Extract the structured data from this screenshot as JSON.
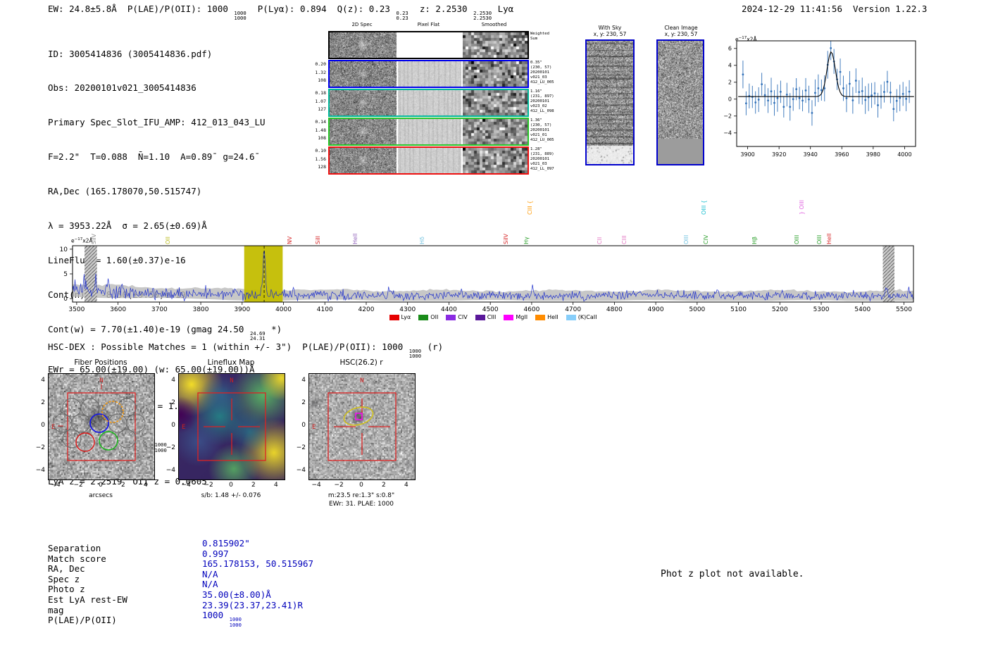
{
  "colors": {
    "value_blue": "#0000bb",
    "panel_border_blue": "#0000cc",
    "compass_red": "#cc2020",
    "crosshair_red": "#dd2222",
    "ellipse_yellow": "#d4c416",
    "marker_magenta": "#ff00ff",
    "spectrum_blue": "#2233cc"
  },
  "header": {
    "ew": "EW: 24.8±5.8Å  ",
    "plae_pre": "P(LAE)/P(OII): 1000 ",
    "plae_top": "1000",
    "plae_bottom": "1000",
    "plya": "  P(Lyα): 0.894  ",
    "qz_pre": "Q(z): 0.23 ",
    "qz_top": "0.23",
    "qz_bottom": "0.23",
    "z_pre": "  z: 2.2530 ",
    "z_top": "2.2530",
    "z_bottom": "2.2530",
    "z_post": " Lyα",
    "timestamp": "2024-12-29 11:41:56  Version 1.22.3"
  },
  "info": {
    "lines": [
      "ID: 3005414836 (3005414836.pdf)",
      "Obs: 20200101v021_3005414836",
      "Primary Spec_Slot_IFU_AMP: 412_013_043_LU",
      "F=2.2\"  T=0.088  N̄=1.10  A=0.89̄  g=24.6̄",
      "RA,Dec (165.178070,50.515747)",
      "λ = 3953.22Å  σ = 2.65(±0.69)Å",
      "LineFlux = 1.60(±0.37)e-16",
      "Cont(n) = -8.50(±9.50)e-19"
    ],
    "contw_pre": "Cont(w) = 7.70(±1.40)e-19 (gmag 24.50 ",
    "contw_top": "24.69",
    "contw_bottom": "24.31",
    "contw_post": " *)",
    "ewr_line": "EWr = 65.00(±19.00) (w: 65.00(±19.00))Å",
    "sn_pre": "S/N = 4.9(±0.4)   χ",
    "sn_sup": "2",
    "sn_post": " = 1.0(±0.2)",
    "plae_pre": "P(LAE)/P(OII): 1000 ",
    "plae_top": "1000",
    "plae_bottom": "1000",
    "z_line": "LyA z = 2.2519  OII z = 0.0605"
  },
  "twod": {
    "headers": [
      "2D Spec",
      "Pixel Flat",
      "Smoothed"
    ],
    "rows": [
      {
        "border": "#000000",
        "weighted": true,
        "left": [],
        "right": [
          "Weighted",
          "Sum"
        ]
      },
      {
        "border": "#0000ee",
        "left": [
          "0.20",
          "1.32",
          "108"
        ],
        "right": [
          "0.35\"",
          "(230, 57)",
          "20200101",
          "v021_03",
          "412_LU_005"
        ]
      },
      {
        "border": "#00b89b",
        "left": [
          "0.18",
          "1.07",
          "127"
        ],
        "right": [
          "1.16\"",
          "(231, 897)",
          "20200101",
          "v023_02",
          "412_LL_098"
        ]
      },
      {
        "border": "#27c427",
        "left": [
          "0.14",
          "1.48",
          "108"
        ],
        "right": [
          "1.36\"",
          "(230, 57)",
          "20200101",
          "v021_01",
          "412_LU_005"
        ]
      },
      {
        "border": "#ee1111",
        "left": [
          "0.10",
          "1.56",
          "128"
        ],
        "right": [
          "1.28\"",
          "(231, 889)",
          "20200101",
          "v021_03",
          "412_LL_097"
        ]
      }
    ]
  },
  "withsky": {
    "title": "With Sky",
    "subtitle": "x, y: 230, 57"
  },
  "clean": {
    "title": "Clean Image",
    "subtitle": "x, y: 230, 57"
  },
  "hscdex": {
    "pre": "HSC-DEX : Possible Matches = 1 (within +/- 3\")  P(LAE)/P(OII): 1000 ",
    "frac_top": "1000",
    "frac_bottom": "1000",
    "post": " (r)"
  },
  "cutouts": [
    {
      "title": "Fiber Positions",
      "xlabel": "arcsecs",
      "xticks": [
        -4,
        -2,
        0,
        2,
        4
      ],
      "yticks": [
        4,
        2,
        0,
        -2,
        -4
      ],
      "compass": {
        "north": "N",
        "east": "E"
      }
    },
    {
      "title": "Lineflux Map",
      "xlabel": "s/b: 1.48 +/- 0.076",
      "xticks": [
        -4,
        -2,
        0,
        2,
        4
      ],
      "yticks": [
        4,
        2,
        0,
        -2,
        -4
      ],
      "compass": {
        "north": "N",
        "east": "E"
      }
    },
    {
      "title": "HSC(26.2) r",
      "xlabel": "m:23.5 re:1.3\" s:0.8\"",
      "xlabel2": "EWr: 31. PLAE: 1000",
      "xticks": [
        -4,
        -2,
        0,
        2,
        4
      ],
      "yticks": [
        4,
        2,
        0,
        -2,
        -4
      ],
      "compass": {
        "north": "N",
        "east": "E"
      }
    }
  ],
  "match_table": {
    "rows": [
      {
        "label": "Separation",
        "value": "0.815902\""
      },
      {
        "label": "Match score",
        "value": "0.997"
      },
      {
        "label": "RA, Dec",
        "value": "165.178153, 50.515967"
      },
      {
        "label": "Spec z",
        "value": "N/A"
      },
      {
        "label": "Photo z",
        "value": "N/A"
      },
      {
        "label": "Est LyA rest-EW",
        "value": "35.00(±8.00)Å"
      },
      {
        "label": "mag",
        "value": "23.39(23.37,23.41)R"
      },
      {
        "label": "P(LAE)/P(OII)",
        "value": "1000",
        "frac_top": "1000",
        "frac_bottom": "1000"
      }
    ]
  },
  "photz_note": "Phot z plot not available.",
  "chart_data": [
    {
      "id": "emission_line_fit_inset",
      "type": "scatter",
      "title": "",
      "xlabel": "",
      "ylabel": "e-17x2Å",
      "ylabel_parts": {
        "base": "e",
        "sup": "−17",
        "rest": "x2Å"
      },
      "xlim": [
        3893,
        4007
      ],
      "ylim": [
        -5.6,
        6.9
      ],
      "xticks": [
        3900,
        3920,
        3940,
        3960,
        3980,
        4000
      ],
      "yticks": [
        -4,
        -2,
        0,
        2,
        4,
        6
      ],
      "points": {
        "x_start": 3897,
        "x_step": 2,
        "n": 54,
        "continuum": 0.3,
        "noise_sigma": 0.95,
        "errorbar": 1.25,
        "color": "#3070b8",
        "seed": 7
      },
      "fit": {
        "type": "gaussian",
        "center": 3953.22,
        "sigma": 2.65,
        "amplitude": 5.3,
        "continuum": 0.3,
        "color": "#000000"
      }
    },
    {
      "id": "full_spectrum",
      "type": "line",
      "title": "",
      "xlabel": "",
      "ylabel": "e-17x2Å",
      "ylabel_parts": {
        "base": "e",
        "sup": "−17",
        "rest": "x2Å"
      },
      "xlim": [
        3490,
        5523
      ],
      "ylim": [
        -0.7,
        10.7
      ],
      "xticks": [
        3500,
        3600,
        3700,
        3800,
        3900,
        4000,
        4100,
        4200,
        4300,
        4400,
        4500,
        4600,
        4700,
        4800,
        4900,
        5000,
        5100,
        5200,
        5300,
        5400,
        5500
      ],
      "yticks": [
        0,
        5,
        10
      ],
      "line_color": "#2233cc",
      "band_color": "#b9b9b9",
      "continuum": 0.55,
      "continuum_bump": 0.95,
      "noise_sigma": 0.42,
      "seed": 42,
      "main_peak": {
        "center": 3953.22,
        "amplitude": 9.3,
        "sigma": 2.8
      },
      "secondary_peaks": [
        [
          3518,
          2.6
        ],
        [
          3548,
          2.3
        ],
        [
          3576,
          1.9
        ],
        [
          3610,
          1.5
        ],
        [
          4024,
          1.3
        ],
        [
          4258,
          1.1
        ],
        [
          4602,
          1.4
        ],
        [
          4860,
          0.9
        ],
        [
          5048,
          1.0
        ],
        [
          5206,
          0.9
        ],
        [
          5458,
          1.7
        ],
        [
          5512,
          1.3
        ]
      ],
      "highlight_band": {
        "x0": 3905,
        "x1": 3998,
        "color": "#c3bd00"
      },
      "marker_line": {
        "x": 3953.22,
        "style": "dashed",
        "color": "#000000"
      },
      "hatched_bands": [
        [
          3519,
          3549
        ],
        [
          5449,
          5477
        ]
      ],
      "emission_labels": [
        {
          "wave": 3558,
          "label": "SiIV",
          "color": "#8c8c8c",
          "tier": 1
        },
        {
          "wave": 3737,
          "label": "OII",
          "color": "#bcbd22",
          "tier": 1
        },
        {
          "wave": 4032,
          "label": "NV",
          "color": "#d62728",
          "tier": 1
        },
        {
          "wave": 4100,
          "label": "SiII",
          "color": "#d62728",
          "tier": 1
        },
        {
          "wave": 4190,
          "label": "HeII",
          "color": "#9467bd",
          "tier": 1
        },
        {
          "wave": 4352,
          "label": "Hδ",
          "color": "#74c3e0",
          "tier": 1
        },
        {
          "wave": 4554,
          "label": "SiIV",
          "color": "#d62728",
          "tier": 1
        },
        {
          "wave": 4604,
          "label": "Hγ",
          "color": "#2ca02c",
          "tier": 1
        },
        {
          "wave": 4612,
          "label": "CIII {",
          "color": "#ff9900",
          "tier": 2
        },
        {
          "wave": 4780,
          "label": "CII",
          "color": "#e377c2",
          "tier": 1
        },
        {
          "wave": 4840,
          "label": "CIII",
          "color": "#e377c2",
          "tier": 1
        },
        {
          "wave": 4990,
          "label": "OIII",
          "color": "#74c3e0",
          "tier": 1
        },
        {
          "wave": 5032,
          "label": "OIII {",
          "color": "#17becf",
          "tier": 2
        },
        {
          "wave": 5037,
          "label": "CIV",
          "color": "#2ca02c",
          "tier": 1
        },
        {
          "wave": 5155,
          "label": "Hβ",
          "color": "#2ca02c",
          "tier": 1
        },
        {
          "wave": 5258,
          "label": "OIII",
          "color": "#2ca02c",
          "tier": 1
        },
        {
          "wave": 5270,
          "label": "} OIII",
          "color": "#e064e0",
          "tier": 2
        },
        {
          "wave": 5312,
          "label": "OIII",
          "color": "#2ca02c",
          "tier": 1
        },
        {
          "wave": 5336,
          "label": "HeII",
          "color": "#d62728",
          "tier": 1
        }
      ],
      "legend": [
        {
          "label": "Lyα",
          "color": "#e60000"
        },
        {
          "label": "OII",
          "color": "#1a8c1a"
        },
        {
          "label": "CIV",
          "color": "#8a2be2"
        },
        {
          "label": "CIII",
          "color": "#5a189a"
        },
        {
          "label": "MgII",
          "color": "#ff00ff"
        },
        {
          "label": "HeII",
          "color": "#ff8c00"
        },
        {
          "label": "(K)CaII",
          "color": "#87cefa"
        }
      ],
      "legend_position": "bottom"
    }
  ]
}
